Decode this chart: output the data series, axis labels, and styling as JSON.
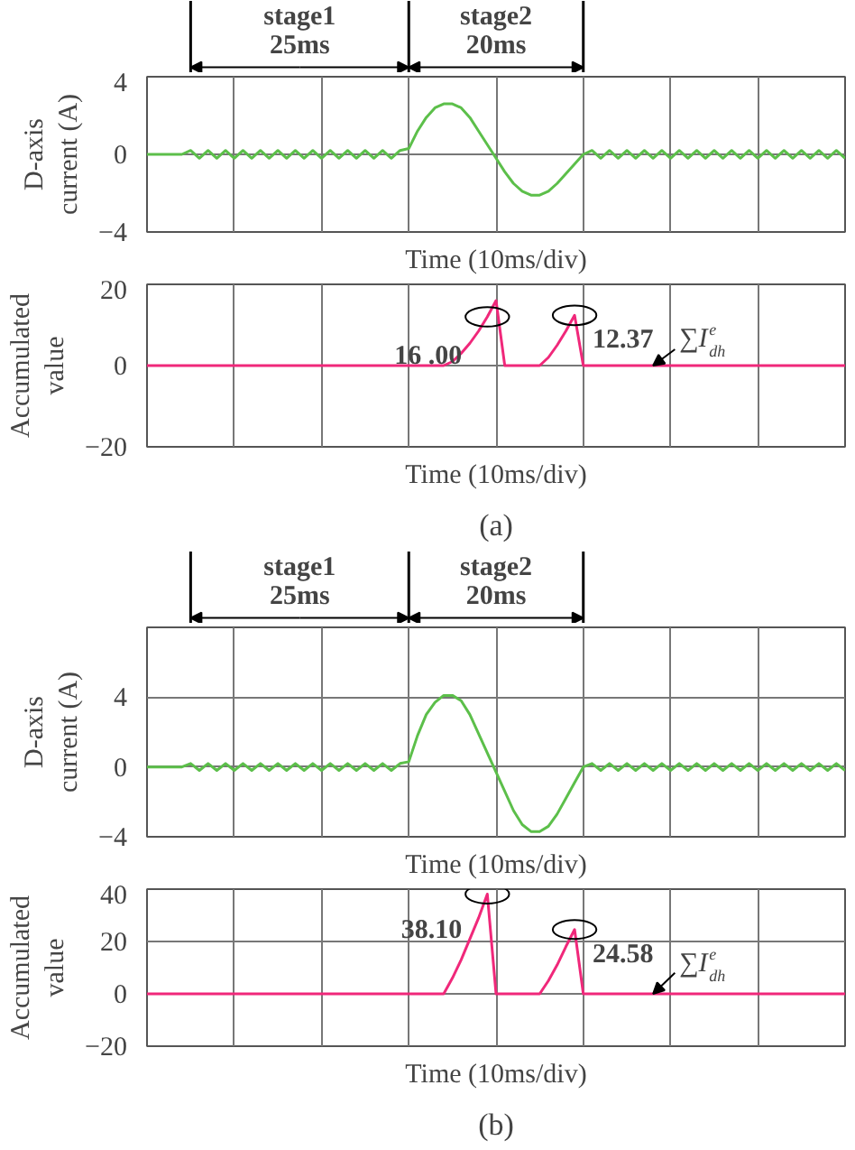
{
  "chart_data": [
    {
      "type": "line",
      "xlabel": "Time (10ms/div)",
      "ylabel": "D-axis\ncurrent (A)",
      "categories": [
        null,
        null,
        null,
        null,
        null,
        null,
        null,
        null,
        null,
        null,
        null,
        null,
        null,
        null,
        null,
        null,
        null,
        null,
        null,
        null,
        null,
        null,
        null,
        null,
        null,
        null,
        null,
        null,
        null,
        null,
        null,
        null,
        null,
        null,
        null,
        null,
        null,
        null,
        null,
        null,
        null,
        null,
        null,
        null,
        null,
        null,
        null,
        null,
        null,
        null,
        null,
        null,
        null,
        null,
        null,
        null,
        null,
        null,
        null,
        null,
        null,
        null,
        null,
        null,
        null,
        null,
        null,
        null,
        null,
        null,
        null,
        null,
        null,
        null,
        null,
        null,
        null,
        null,
        null,
        null,
        null
      ],
      "series": [
        {
          "color": "#5cbf4a",
          "values": [
            0,
            0,
            0,
            0,
            0,
            0.2,
            -0.2,
            0.2,
            -0.2,
            0.2,
            -0.2,
            0.2,
            -0.2,
            0.2,
            -0.2,
            0.2,
            -0.2,
            0.2,
            -0.2,
            0.2,
            -0.2,
            0.2,
            -0.2,
            0.2,
            -0.2,
            0.2,
            -0.2,
            0.2,
            -0.2,
            0.2,
            0.3,
            1.2,
            1.9,
            2.4,
            2.6,
            2.6,
            2.4,
            1.9,
            1.2,
            0.5,
            -0.2,
            -0.9,
            -1.5,
            -1.9,
            -2.1,
            -2.1,
            -1.9,
            -1.5,
            -1.0,
            -0.5,
            0,
            0.2,
            -0.2,
            0.2,
            -0.2,
            0.2,
            -0.2,
            0.2,
            -0.2,
            0.2,
            -0.2,
            0.2,
            -0.2,
            0.2,
            -0.2,
            0.2,
            -0.2,
            0.2,
            -0.2,
            0.2,
            -0.2,
            0.2,
            -0.2,
            0.2,
            -0.2,
            0.2,
            -0.2,
            0.2,
            -0.2,
            0.2,
            -0.2
          ]
        }
      ],
      "ylim": [
        -4,
        4
      ],
      "yticks": [
        -4,
        0,
        4
      ],
      "grid": true,
      "tick_labels": "y",
      "annotations": [
        "stage1",
        "25ms",
        "stage2",
        "20ms"
      ]
    },
    {
      "type": "line",
      "xlabel": "Time (10ms/div)",
      "ylabel": "Accumulated\nvalue",
      "categories": [
        null,
        null,
        null,
        null,
        null,
        null,
        null,
        null,
        null,
        null,
        null,
        null,
        null,
        null,
        null,
        null,
        null,
        null,
        null,
        null,
        null,
        null,
        null,
        null,
        null,
        null,
        null,
        null,
        null,
        null,
        null,
        null,
        null,
        null,
        null,
        null,
        null,
        null,
        null,
        null,
        null,
        null,
        null,
        null,
        null,
        null,
        null,
        null,
        null,
        null,
        null,
        null,
        null,
        null,
        null,
        null,
        null,
        null,
        null,
        null,
        null,
        null,
        null,
        null,
        null,
        null,
        null,
        null,
        null,
        null,
        null,
        null,
        null,
        null,
        null,
        null,
        null,
        null,
        null,
        null,
        null
      ],
      "series": [
        {
          "color": "#f0287a",
          "values": [
            0,
            0,
            0,
            0,
            0,
            0,
            0,
            0,
            0,
            0,
            0,
            0,
            0,
            0,
            0,
            0,
            0,
            0,
            0,
            0,
            0,
            0,
            0,
            0,
            0,
            0,
            0,
            0,
            0,
            0,
            0,
            0,
            0,
            0,
            0,
            1,
            3,
            5.5,
            8.5,
            12,
            16,
            0,
            0,
            0,
            0,
            0,
            2,
            5,
            8.5,
            12.37,
            0,
            0,
            0,
            0,
            0,
            0,
            0,
            0,
            0,
            0,
            0,
            0,
            0,
            0,
            0,
            0,
            0,
            0,
            0,
            0,
            0,
            0,
            0,
            0,
            0,
            0,
            0,
            0,
            0,
            0,
            0
          ]
        }
      ],
      "ylim": [
        -20,
        20
      ],
      "yticks": [
        -20,
        0,
        20
      ],
      "grid": true,
      "tick_labels": "y",
      "annotations": [
        "16 .00",
        "12.37",
        "∑I$^{e}$$_{dh}$",
        "(a)"
      ]
    },
    {
      "type": "line",
      "xlabel": "Time (10ms/div)",
      "ylabel": "D-axis\ncurrent (A)",
      "categories": [
        null,
        null,
        null,
        null,
        null,
        null,
        null,
        null,
        null,
        null,
        null,
        null,
        null,
        null,
        null,
        null,
        null,
        null,
        null,
        null,
        null,
        null,
        null,
        null,
        null,
        null,
        null,
        null,
        null,
        null,
        null,
        null,
        null,
        null,
        null,
        null,
        null,
        null,
        null,
        null,
        null,
        null,
        null,
        null,
        null,
        null,
        null,
        null,
        null,
        null,
        null,
        null,
        null,
        null,
        null,
        null,
        null,
        null,
        null,
        null,
        null,
        null,
        null,
        null,
        null,
        null,
        null,
        null,
        null,
        null,
        null,
        null,
        null,
        null,
        null,
        null,
        null,
        null,
        null,
        null,
        null
      ],
      "series": [
        {
          "color": "#5cbf4a",
          "values": [
            0,
            0,
            0,
            0,
            0,
            0.2,
            -0.2,
            0.2,
            -0.2,
            0.2,
            -0.2,
            0.2,
            -0.2,
            0.2,
            -0.2,
            0.2,
            -0.2,
            0.2,
            -0.2,
            0.2,
            -0.2,
            0.2,
            -0.2,
            0.2,
            -0.2,
            0.2,
            -0.2,
            0.2,
            -0.2,
            0.2,
            0.3,
            1.8,
            3.0,
            3.7,
            4.1,
            4.1,
            3.8,
            3.0,
            1.9,
            0.8,
            -0.3,
            -1.4,
            -2.5,
            -3.3,
            -3.7,
            -3.7,
            -3.4,
            -2.7,
            -1.8,
            -0.9,
            0,
            0.2,
            -0.2,
            0.2,
            -0.2,
            0.2,
            -0.2,
            0.2,
            -0.2,
            0.2,
            -0.2,
            0.2,
            -0.2,
            0.2,
            -0.2,
            0.2,
            -0.2,
            0.2,
            -0.2,
            0.2,
            -0.2,
            0.2,
            -0.2,
            0.2,
            -0.2,
            0.2,
            -0.2,
            0.2,
            -0.2,
            0.2,
            -0.2
          ]
        }
      ],
      "ylim": [
        -4,
        8
      ],
      "yticks": [
        -4,
        0,
        4
      ],
      "grid": true,
      "tick_labels": "y",
      "annotations": [
        "stage1",
        "25ms",
        "stage2",
        "20ms"
      ]
    },
    {
      "type": "line",
      "xlabel": "Time (10ms/div)",
      "ylabel": "Accumulated\nvalue",
      "categories": [
        null,
        null,
        null,
        null,
        null,
        null,
        null,
        null,
        null,
        null,
        null,
        null,
        null,
        null,
        null,
        null,
        null,
        null,
        null,
        null,
        null,
        null,
        null,
        null,
        null,
        null,
        null,
        null,
        null,
        null,
        null,
        null,
        null,
        null,
        null,
        null,
        null,
        null,
        null,
        null,
        null,
        null,
        null,
        null,
        null,
        null,
        null,
        null,
        null,
        null,
        null,
        null,
        null,
        null,
        null,
        null,
        null,
        null,
        null,
        null,
        null,
        null,
        null,
        null,
        null,
        null,
        null,
        null,
        null,
        null,
        null,
        null,
        null,
        null,
        null,
        null,
        null,
        null,
        null,
        null,
        null
      ],
      "series": [
        {
          "color": "#f0287a",
          "values": [
            0,
            0,
            0,
            0,
            0,
            0,
            0,
            0,
            0,
            0,
            0,
            0,
            0,
            0,
            0,
            0,
            0,
            0,
            0,
            0,
            0,
            0,
            0,
            0,
            0,
            0,
            0,
            0,
            0,
            0,
            0,
            0,
            0,
            0,
            0,
            6,
            13,
            21,
            29,
            38.1,
            0,
            0,
            0,
            0,
            0,
            0,
            5,
            11,
            18,
            24.58,
            0,
            0,
            0,
            0,
            0,
            0,
            0,
            0,
            0,
            0,
            0,
            0,
            0,
            0,
            0,
            0,
            0,
            0,
            0,
            0,
            0,
            0,
            0,
            0,
            0,
            0,
            0,
            0,
            0,
            0,
            0
          ]
        }
      ],
      "ylim": [
        -20,
        40
      ],
      "yticks": [
        -20,
        0,
        20,
        40
      ],
      "grid": true,
      "tick_labels": "y",
      "annotations": [
        "38.10",
        "24.58",
        "∑I$^{e}$$_{dh}$",
        "(b)"
      ]
    }
  ]
}
